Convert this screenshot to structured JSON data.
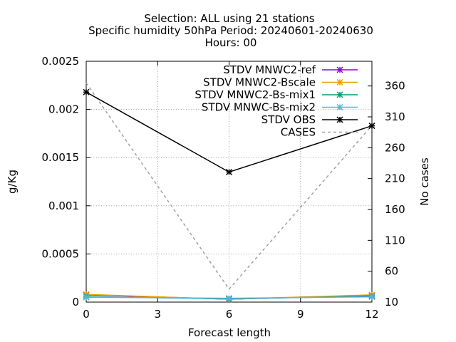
{
  "chart_data": {
    "type": "line",
    "title_lines": [
      "Selection: ALL using    21 stations",
      "Specific humidity 50hPa   Period: 20240601-20240630",
      "Hours: 00"
    ],
    "xlabel": "Forecast length",
    "ylabel": "g/Kg",
    "y2label": "No cases",
    "xlim": [
      0,
      12
    ],
    "ylim": [
      0,
      0.0025
    ],
    "y2lim": [
      10,
      400
    ],
    "xticks": [
      0,
      3,
      6,
      9,
      12
    ],
    "xtick_labels": [
      "0",
      "3",
      "6",
      "9",
      "12"
    ],
    "yticks": [
      0,
      0.0005,
      0.001,
      0.0015,
      0.002,
      0.0025
    ],
    "ytick_labels": [
      "0",
      "0.0005",
      "0.001",
      "0.0015",
      "0.002",
      "0.0025"
    ],
    "y2ticks": [
      10,
      60,
      110,
      160,
      210,
      260,
      310,
      360
    ],
    "y2tick_labels": [
      "10",
      "60",
      "110",
      "160",
      "210",
      "260",
      "310",
      "360"
    ],
    "grid": true,
    "legend_position": "top-right",
    "x": [
      0,
      6,
      12
    ],
    "series": [
      {
        "name": "STDV MNWC2-ref",
        "color": "#9400d3",
        "axis": "y",
        "dash": false,
        "marker": true,
        "values": [
          7.5e-05,
          3e-05,
          7e-05
        ]
      },
      {
        "name": "STDV MNWC2-Bscale",
        "color": "#e69f00",
        "axis": "y",
        "dash": false,
        "marker": true,
        "values": [
          8e-05,
          3e-05,
          7.5e-05
        ]
      },
      {
        "name": "STDV MNWC2-Bs-mix1",
        "color": "#009e73",
        "axis": "y",
        "dash": false,
        "marker": true,
        "values": [
          5.5e-05,
          3.5e-05,
          6e-05
        ]
      },
      {
        "name": "STDV MNWC-Bs-mix2",
        "color": "#56b4e9",
        "axis": "y",
        "dash": false,
        "marker": true,
        "values": [
          5e-05,
          4e-05,
          5.5e-05
        ]
      },
      {
        "name": "STDV OBS",
        "color": "#000000",
        "axis": "y",
        "dash": false,
        "marker": true,
        "values": [
          0.00218,
          0.00135,
          0.00183
        ]
      },
      {
        "name": "CASES",
        "color": "#a0a0a0",
        "axis": "y2",
        "dash": true,
        "marker": false,
        "values": [
          365,
          31,
          296
        ]
      }
    ]
  }
}
